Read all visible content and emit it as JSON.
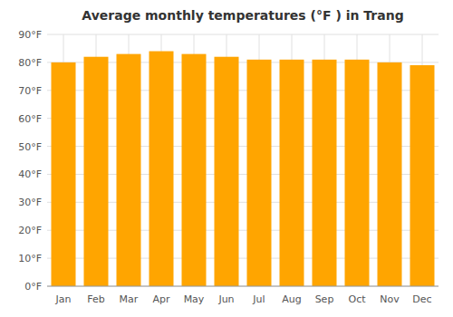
{
  "chart_data": {
    "type": "bar",
    "title": "Average monthly temperatures (°F ) in Trang",
    "categories": [
      "Jan",
      "Feb",
      "Mar",
      "Apr",
      "May",
      "Jun",
      "Jul",
      "Aug",
      "Sep",
      "Oct",
      "Nov",
      "Dec"
    ],
    "values": [
      80,
      82,
      83,
      84,
      83,
      82,
      81,
      81,
      81,
      81,
      80,
      79
    ],
    "color": "#FFA500",
    "ylim": [
      0,
      90
    ],
    "yticks": [
      {
        "value": 0,
        "label": "0°F"
      },
      {
        "value": 10,
        "label": "10°F"
      },
      {
        "value": 20,
        "label": "20°F"
      },
      {
        "value": 30,
        "label": "30°F"
      },
      {
        "value": 40,
        "label": "40°F"
      },
      {
        "value": 50,
        "label": "50°F"
      },
      {
        "value": 60,
        "label": "60°F"
      },
      {
        "value": 70,
        "label": "70°F"
      },
      {
        "value": 80,
        "label": "80°F"
      },
      {
        "value": 90,
        "label": "90°F"
      }
    ],
    "grid": true
  }
}
